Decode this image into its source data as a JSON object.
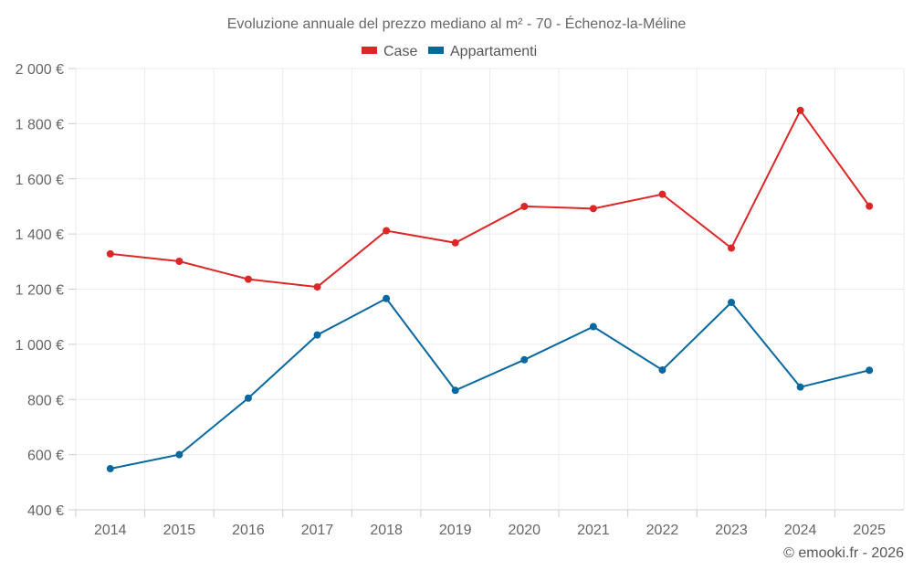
{
  "chart_data": {
    "type": "line",
    "title": "Evoluzione annuale del prezzo mediano al m² - 70 - Échenoz-la-Méline",
    "xlabel": "",
    "ylabel": "",
    "categories": [
      "2014",
      "2015",
      "2016",
      "2017",
      "2018",
      "2019",
      "2020",
      "2021",
      "2022",
      "2023",
      "2024",
      "2025"
    ],
    "ylim": [
      400,
      2000
    ],
    "yticks": [
      400,
      600,
      800,
      1000,
      1200,
      1400,
      1600,
      1800,
      2000
    ],
    "ytick_labels": [
      "400 €",
      "600 €",
      "800 €",
      "1 000 €",
      "1 200 €",
      "1 400 €",
      "1 600 €",
      "1 800 €",
      "2 000 €"
    ],
    "grid": true,
    "legend_position": "top-center",
    "series": [
      {
        "name": "Case",
        "color": "#dd2727",
        "values": [
          1328,
          1301,
          1236,
          1208,
          1412,
          1368,
          1500,
          1492,
          1544,
          1349,
          1848,
          1501
        ]
      },
      {
        "name": "Appartamenti",
        "color": "#07689f",
        "values": [
          549,
          600,
          805,
          1034,
          1166,
          833,
          944,
          1064,
          907,
          1152,
          845,
          906
        ]
      }
    ],
    "credit": "© emooki.fr - 2026"
  }
}
